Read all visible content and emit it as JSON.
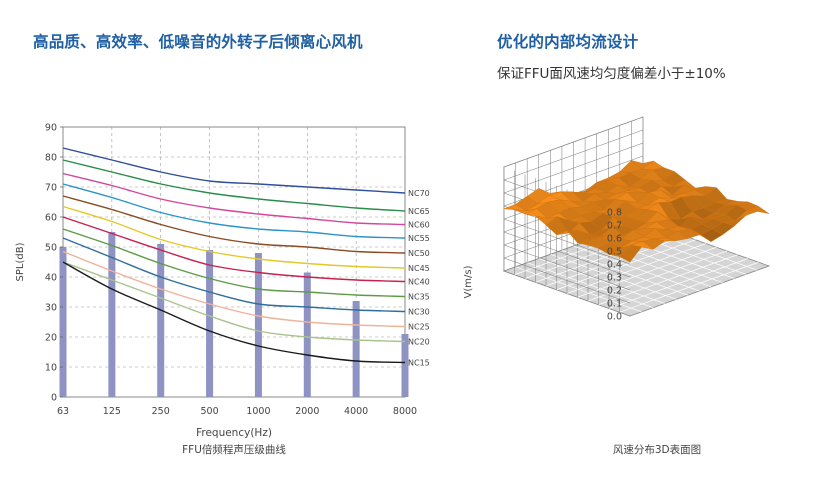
{
  "left_heading": "高品质、高效率、低噪音的外转子后倾离心风机",
  "right_heading": "优化的内部均流设计",
  "right_subheading": "保证FFU面风速均匀度偏差小于±10%",
  "chart_data": [
    {
      "type": "line",
      "title": "FFU倍频程声压级曲线",
      "xlabel": "Frequency(Hz)",
      "ylabel": "SPL(dB)",
      "categories": [
        "63",
        "125",
        "250",
        "500",
        "1000",
        "2000",
        "4000",
        "8000"
      ],
      "ylim": [
        0,
        90
      ],
      "yticks": [
        0,
        10,
        20,
        30,
        40,
        50,
        60,
        70,
        80,
        90
      ],
      "grid": true,
      "bars": {
        "values": [
          50,
          55,
          51,
          49,
          48,
          41.5,
          32,
          21
        ],
        "color": "#8f93c4"
      },
      "series": [
        {
          "name": "NC70",
          "color": "#2e4f9a",
          "values": [
            83,
            79,
            75,
            72,
            71,
            70,
            69,
            68
          ]
        },
        {
          "name": "NC65",
          "color": "#2a8c4a",
          "values": [
            79,
            75,
            71,
            68,
            66,
            64.5,
            63,
            62
          ]
        },
        {
          "name": "NC60",
          "color": "#d4479a",
          "values": [
            74.5,
            70.5,
            66,
            63,
            61,
            59.5,
            58,
            57.5
          ]
        },
        {
          "name": "NC55",
          "color": "#2a95c8",
          "values": [
            71,
            66.5,
            61.5,
            58,
            56,
            55,
            53.5,
            53
          ]
        },
        {
          "name": "NC50",
          "color": "#8a4a22",
          "values": [
            67,
            62.5,
            57.5,
            53.5,
            51,
            50,
            48.5,
            48
          ]
        },
        {
          "name": "NC45",
          "color": "#e2c92a",
          "values": [
            63.5,
            58.5,
            52.5,
            48.5,
            46,
            44.5,
            43.5,
            43
          ]
        },
        {
          "name": "NC40",
          "color": "#c7214f",
          "values": [
            60,
            54.5,
            49,
            44,
            41.5,
            40,
            39,
            38.5
          ]
        },
        {
          "name": "NC35",
          "color": "#5d9b45",
          "values": [
            56,
            50.5,
            44.5,
            39.5,
            36,
            35,
            34,
            33.5
          ]
        },
        {
          "name": "NC30",
          "color": "#2f6e9c",
          "values": [
            53,
            46.5,
            40,
            35,
            31,
            30,
            29,
            28.5
          ]
        },
        {
          "name": "NC25",
          "color": "#efb399",
          "values": [
            48.5,
            42,
            36,
            31,
            27,
            25,
            24,
            23.5
          ]
        },
        {
          "name": "NC20",
          "color": "#a8c38d",
          "values": [
            45,
            39,
            33,
            27,
            22,
            20,
            19,
            18.5
          ]
        },
        {
          "name": "NC15",
          "color": "#1a1a1a",
          "values": [
            45,
            36,
            29,
            22,
            17,
            14,
            12,
            11.5
          ]
        }
      ]
    },
    {
      "type": "surface",
      "title": "风速分布3D表面图",
      "zlabel": "V(m/s)",
      "zlim": [
        0.0,
        0.8
      ],
      "zticks": [
        "0.0",
        "0.1",
        "0.2",
        "0.3",
        "0.4",
        "0.5",
        "0.6",
        "0.7",
        "0.8"
      ],
      "grid_size": [
        13,
        13
      ],
      "surface_mean": 0.45,
      "surface_color": "#ef8a1a",
      "grid": true
    }
  ]
}
